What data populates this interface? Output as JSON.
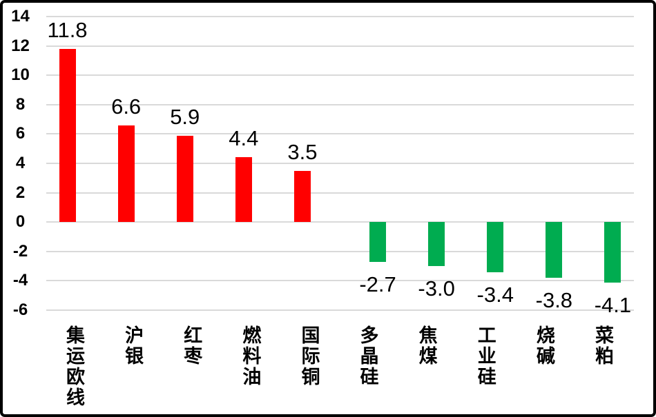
{
  "window": {
    "background": "#FFFFFF",
    "border_color": "#000000"
  },
  "chart_data": {
    "type": "bar",
    "title": "",
    "xlabel": "",
    "ylabel": "",
    "categories": [
      "集运欧线",
      "沪银",
      "红枣",
      "燃料油",
      "国际铜",
      "多晶硅",
      "焦煤",
      "工业硅",
      "烧碱",
      "菜粕"
    ],
    "values": [
      11.8,
      6.6,
      5.9,
      4.4,
      3.5,
      -2.7,
      -3.0,
      -3.4,
      -3.8,
      -4.1
    ],
    "value_labels": [
      "11.8",
      "6.6",
      "5.9",
      "4.4",
      "3.5",
      "-2.7",
      "-3.0",
      "-3.4",
      "-3.8",
      "-4.1"
    ],
    "ylim": [
      -6,
      14
    ],
    "yticks": [
      14,
      12,
      10,
      8,
      6,
      4,
      2,
      0,
      "-2",
      "-4",
      "-6"
    ],
    "ytick_values": [
      14,
      12,
      10,
      8,
      6,
      4,
      2,
      0,
      -2,
      -4,
      -6
    ],
    "grid": true,
    "legend": "none",
    "category_labels_orientation": "vertical-stacked",
    "colors": {
      "positive": "#FF0000",
      "negative": "#00AC50",
      "gridline": "#D9D9D9",
      "text": "#000000"
    }
  }
}
